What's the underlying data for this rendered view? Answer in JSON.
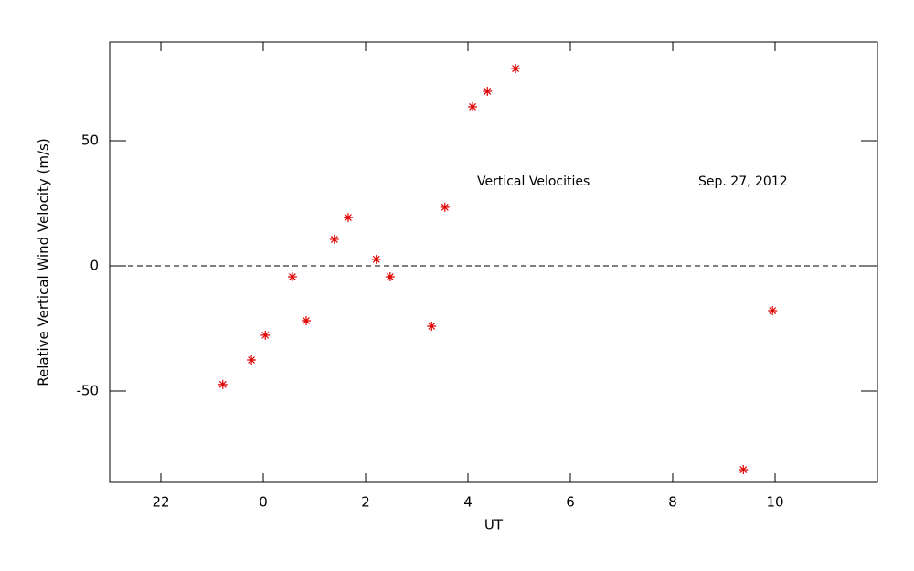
{
  "chart_data": {
    "type": "scatter",
    "annotations": [
      "Vertical Velocities",
      "Sep. 27, 2012"
    ],
    "x_label": "UT",
    "y_label": "Relative Vertical Wind Velocity (m/s)",
    "series": [
      {
        "name": "Vertical Velocities",
        "color": "#e00000",
        "x": [
          -0.79,
          -0.23,
          0.04,
          0.57,
          0.84,
          1.39,
          1.66,
          2.21,
          2.48,
          3.29,
          3.55,
          4.09,
          4.38,
          4.93,
          9.38,
          9.95
        ],
        "values": [
          -47.4,
          -37.6,
          -27.7,
          -4.4,
          -21.9,
          10.6,
          19.3,
          2.6,
          -4.4,
          -24.1,
          23.4,
          63.5,
          69.7,
          78.8,
          -81.4,
          -17.9
        ]
      }
    ],
    "xlim": [
      -3,
      12
    ],
    "xticks": [
      {
        "value": -2,
        "label": "22"
      },
      0,
      2,
      4,
      6,
      8,
      10
    ],
    "ylim": [
      -86.5,
      89.4
    ],
    "yticks": [
      -50,
      0,
      50
    ],
    "hlines": [
      0
    ]
  }
}
